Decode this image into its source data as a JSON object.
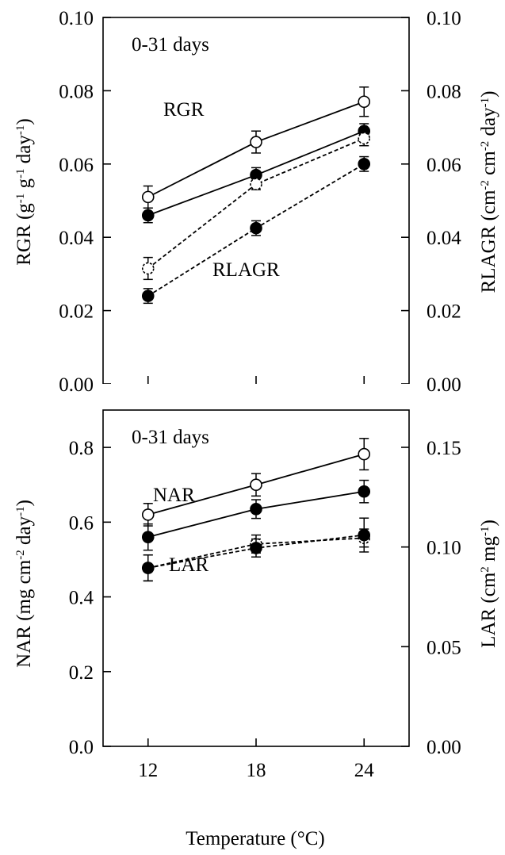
{
  "chart_data": [
    {
      "type": "line",
      "id": "top",
      "x": [
        12,
        18,
        24
      ],
      "xlim": [
        9.5,
        26.5
      ],
      "left_axis": {
        "label": "RGR",
        "unit": "(g-1 g-1 day-1)",
        "ylim": [
          0,
          0.1
        ],
        "ticks": [
          "0.00",
          "0.02",
          "0.04",
          "0.06",
          "0.08",
          "0.10"
        ]
      },
      "right_axis": {
        "label": "RLAGR",
        "unit": "(cm-2 cm-2 day-1)",
        "ylim": [
          0,
          0.1
        ],
        "ticks": [
          "0.00",
          "0.02",
          "0.04",
          "0.06",
          "0.08",
          "0.10"
        ]
      },
      "annotations": [
        "0-31 days",
        "RGR",
        "RLAGR"
      ],
      "series": [
        {
          "axis": "left",
          "marker": "open",
          "line": "solid",
          "values": [
            0.051,
            0.066,
            0.077
          ],
          "errors": [
            0.003,
            0.003,
            0.004
          ]
        },
        {
          "axis": "left",
          "marker": "filled",
          "line": "solid",
          "values": [
            0.046,
            0.057,
            0.069
          ],
          "errors": [
            0.002,
            0.002,
            0.002
          ]
        },
        {
          "axis": "right",
          "marker": "open",
          "line": "dashed",
          "values": [
            0.0315,
            0.0545,
            0.067
          ],
          "errors": [
            0.003,
            0.0015,
            0.002
          ]
        },
        {
          "axis": "right",
          "marker": "filled",
          "line": "dashed",
          "values": [
            0.024,
            0.0425,
            0.06
          ],
          "errors": [
            0.002,
            0.002,
            0.002
          ]
        }
      ]
    },
    {
      "type": "line",
      "id": "bottom",
      "x": [
        12,
        18,
        24
      ],
      "xlim": [
        9.5,
        26.5
      ],
      "xticks": [
        "12",
        "18",
        "24"
      ],
      "xlabel": "Temperature (°C)",
      "left_axis": {
        "label": "NAR",
        "unit": "(mg cm-2 day-1)",
        "ylim": [
          0,
          0.9
        ],
        "ticks": [
          "0.0",
          "0.2",
          "0.4",
          "0.6",
          "0.8"
        ]
      },
      "right_axis": {
        "label": "LAR",
        "unit": "(cm2 mg-1)",
        "ylim": [
          0,
          0.1687
        ],
        "ticks": [
          "0.00",
          "0.05",
          "0.10",
          "0.15"
        ]
      },
      "annotations": [
        "0-31 days",
        "NAR",
        "LAR"
      ],
      "series": [
        {
          "axis": "left",
          "marker": "open",
          "line": "solid",
          "values": [
            0.62,
            0.7,
            0.782
          ],
          "errors": [
            0.03,
            0.03,
            0.042
          ]
        },
        {
          "axis": "left",
          "marker": "filled",
          "line": "solid",
          "values": [
            0.56,
            0.635,
            0.682
          ],
          "errors": [
            0.035,
            0.025,
            0.03
          ]
        },
        {
          "axis": "right",
          "marker": "open",
          "line": "dashed",
          "values": [
            0.0895,
            0.1015,
            0.1045
          ],
          "errors": [
            0.0065,
            0.0045,
            0.0045
          ]
        },
        {
          "axis": "right",
          "marker": "filled",
          "line": "dashed",
          "values": [
            0.0895,
            0.0995,
            0.106
          ],
          "errors": [
            0.0065,
            0.0045,
            0.0085
          ]
        }
      ]
    }
  ]
}
